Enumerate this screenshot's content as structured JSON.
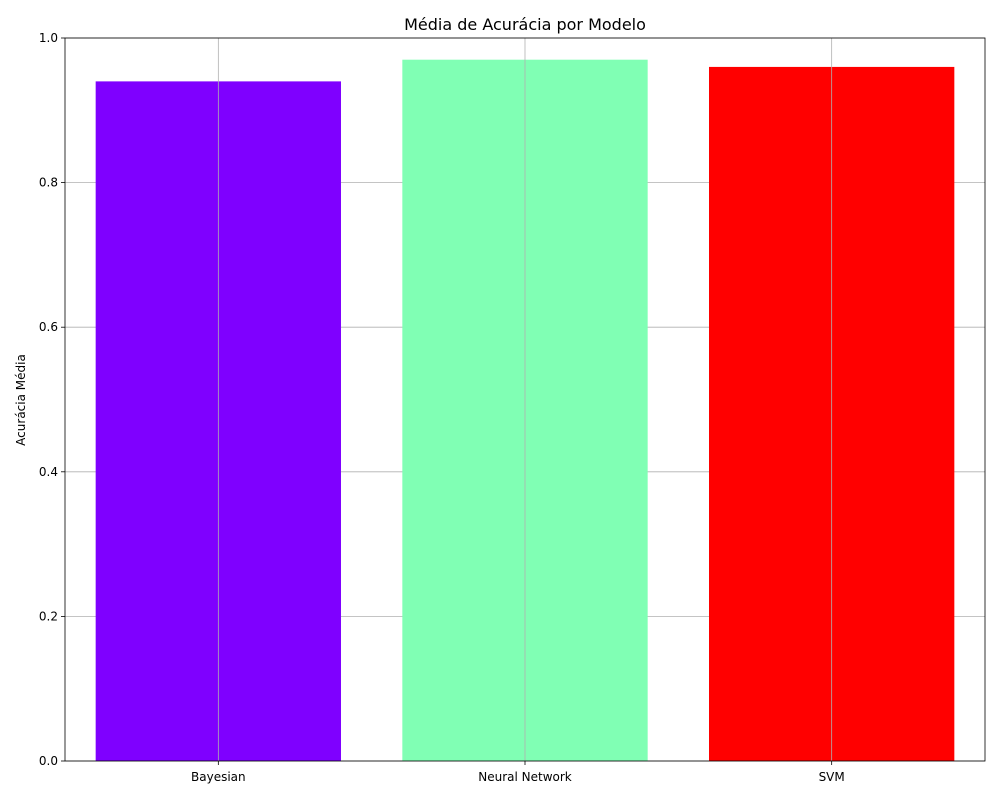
{
  "chart_data": {
    "type": "bar",
    "title": "Média de Acurácia por Modelo",
    "xlabel": "",
    "ylabel": "Acurácia Média",
    "categories": [
      "Bayesian",
      "Neural Network",
      "SVM"
    ],
    "values": [
      0.94,
      0.97,
      0.96
    ],
    "colors": [
      "#7f00ff",
      "#80ffb4",
      "#ff0000"
    ],
    "ylim": [
      0,
      1.0
    ],
    "yticks": [
      "0.0",
      "0.2",
      "0.4",
      "0.6",
      "0.8",
      "1.0"
    ],
    "grid": true,
    "legend": null
  }
}
